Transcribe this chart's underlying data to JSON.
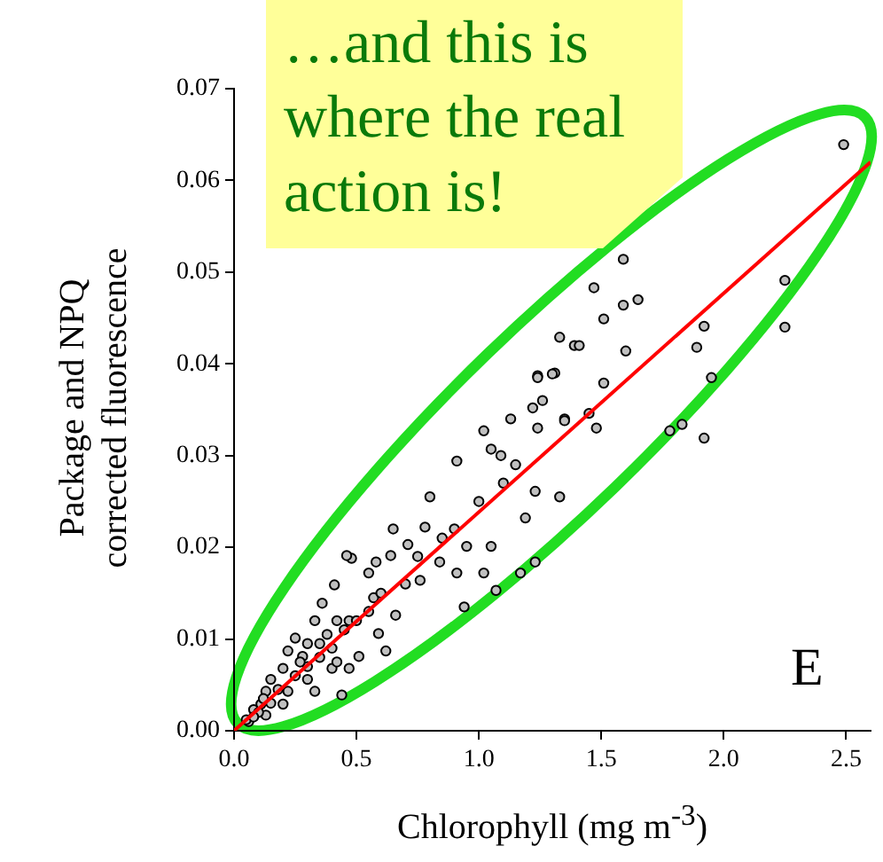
{
  "chart_data": {
    "type": "scatter",
    "xlabel": "Chlorophyll (mg m$^{-3}$)",
    "ylabel": "Package and NPQ corrected fluorescence",
    "xlim": [
      0,
      2.6
    ],
    "ylim": [
      0,
      0.07
    ],
    "xticks": [
      {
        "value": 0,
        "label": "0.0"
      },
      {
        "value": 0.5,
        "label": "0.5"
      },
      {
        "value": 1,
        "label": "1.0"
      },
      {
        "value": 1.5,
        "label": "1.5"
      },
      {
        "value": 2,
        "label": "2.0"
      },
      {
        "value": 2.5,
        "label": "2.5"
      }
    ],
    "yticks": [
      {
        "value": 0,
        "label": "0.00"
      },
      {
        "value": 0.01,
        "label": "0.01"
      },
      {
        "value": 0.02,
        "label": "0.02"
      },
      {
        "value": 0.03,
        "label": "0.03"
      },
      {
        "value": 0.04,
        "label": "0.04"
      },
      {
        "value": 0.05,
        "label": "0.05"
      },
      {
        "value": 0.06,
        "label": "0.06"
      },
      {
        "value": 0.07,
        "label": "0.07"
      }
    ],
    "grid": false,
    "legend": false,
    "marker": "circle",
    "series": [
      {
        "color": "#c0c0c0",
        "x": [
          2.49,
          1.59,
          1.47,
          1.59,
          1.65,
          1.51,
          2.25,
          1.92,
          1.89,
          1.6,
          1.95,
          1.51,
          1.39,
          1.31,
          1.24,
          1.26,
          1.13,
          1.35,
          1.45,
          1.48,
          1.78,
          1.83,
          1.92,
          2.25,
          1.41,
          1.24,
          1.33,
          1.24,
          1.3,
          1.02,
          0.91,
          1.05,
          1.09,
          1.22,
          1.35,
          1.33,
          1.23,
          1.19,
          0.8,
          0.64,
          0.58,
          0.48,
          0.95,
          1.05,
          1.02,
          0.91,
          1.17,
          1.23,
          1.07,
          0.94,
          0.78,
          0.71,
          0.84,
          0.76,
          0.62,
          0.44,
          0.57,
          0.41,
          0.36,
          0.47,
          0.59,
          0.51,
          0.66,
          0.35,
          0.28,
          0.2,
          0.13,
          0.08,
          0.22,
          0.3,
          0.25,
          0.22,
          0.4,
          0.47,
          0.33,
          0.15,
          0.11,
          0.06,
          0.13,
          0.2,
          0.46,
          0.55,
          0.42,
          0.33,
          0.05,
          0.1,
          0.15,
          0.18,
          0.25,
          0.3,
          0.35,
          0.4,
          0.45,
          0.5,
          0.55,
          0.6,
          0.7,
          0.75,
          0.85,
          0.9,
          1.0,
          1.1,
          1.15,
          0.65,
          0.12,
          0.08,
          0.27,
          0.38,
          0.3,
          0.42
        ],
        "values": [
          0.0639,
          0.0514,
          0.0483,
          0.0464,
          0.047,
          0.0449,
          0.0491,
          0.0441,
          0.0418,
          0.0414,
          0.0385,
          0.0379,
          0.042,
          0.039,
          0.0387,
          0.036,
          0.034,
          0.034,
          0.0346,
          0.033,
          0.0327,
          0.0334,
          0.0319,
          0.044,
          0.042,
          0.033,
          0.0429,
          0.0385,
          0.0389,
          0.0327,
          0.0294,
          0.0307,
          0.03,
          0.0352,
          0.0338,
          0.0255,
          0.0261,
          0.0232,
          0.0255,
          0.0191,
          0.0184,
          0.0188,
          0.0201,
          0.0201,
          0.0172,
          0.0172,
          0.0172,
          0.0184,
          0.0153,
          0.0135,
          0.0222,
          0.0203,
          0.0184,
          0.0164,
          0.0087,
          0.0039,
          0.0145,
          0.0159,
          0.0139,
          0.012,
          0.0106,
          0.0081,
          0.0126,
          0.0095,
          0.0081,
          0.0068,
          0.0043,
          0.0023,
          0.0043,
          0.0056,
          0.0101,
          0.0087,
          0.0068,
          0.0068,
          0.0043,
          0.0056,
          0.0029,
          0.001,
          0.0017,
          0.0029,
          0.0191,
          0.0172,
          0.012,
          0.012,
          0.0012,
          0.002,
          0.003,
          0.0045,
          0.006,
          0.007,
          0.008,
          0.009,
          0.011,
          0.012,
          0.013,
          0.015,
          0.016,
          0.019,
          0.021,
          0.022,
          0.025,
          0.027,
          0.029,
          0.022,
          0.0035,
          0.0015,
          0.0075,
          0.0105,
          0.0095,
          0.0075
        ]
      },
      {
        "type": "line",
        "marker": "none",
        "color": "#ff0000",
        "x": [
          0,
          2.6
        ],
        "values": [
          0,
          0.062
        ]
      }
    ],
    "annotations": [
      "…and this is where the real action is!",
      "E"
    ]
  }
}
